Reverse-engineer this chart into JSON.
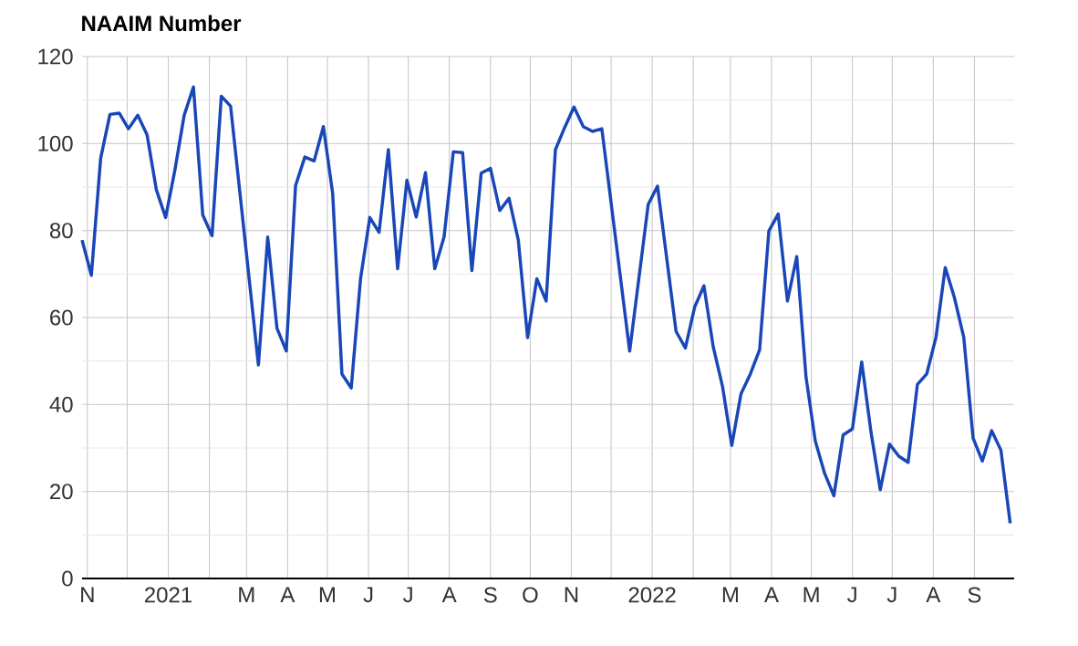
{
  "chart_data": {
    "type": "line",
    "title": "NAAIM Number",
    "x": [
      "2020-10-28",
      "2020-11-04",
      "2020-11-11",
      "2020-11-18",
      "2020-11-25",
      "2020-12-02",
      "2020-12-09",
      "2020-12-16",
      "2020-12-23",
      "2020-12-30",
      "2021-01-06",
      "2021-01-13",
      "2021-01-20",
      "2021-01-27",
      "2021-02-03",
      "2021-02-10",
      "2021-02-17",
      "2021-03-10",
      "2021-03-17",
      "2021-03-24",
      "2021-03-31",
      "2021-04-07",
      "2021-04-14",
      "2021-04-21",
      "2021-04-28",
      "2021-05-05",
      "2021-05-12",
      "2021-05-19",
      "2021-05-26",
      "2021-06-02",
      "2021-06-09",
      "2021-06-16",
      "2021-06-23",
      "2021-06-30",
      "2021-07-07",
      "2021-07-14",
      "2021-07-21",
      "2021-07-28",
      "2021-08-04",
      "2021-08-11",
      "2021-08-18",
      "2021-08-25",
      "2021-09-01",
      "2021-09-08",
      "2021-09-15",
      "2021-09-22",
      "2021-09-29",
      "2021-10-06",
      "2021-10-13",
      "2021-10-20",
      "2021-10-27",
      "2021-11-03",
      "2021-11-10",
      "2021-11-17",
      "2021-11-24",
      "2021-12-15",
      "2021-12-29",
      "2022-01-05",
      "2022-01-19",
      "2022-01-26",
      "2022-02-02",
      "2022-02-09",
      "2022-02-16",
      "2022-02-23",
      "2022-03-02",
      "2022-03-09",
      "2022-03-16",
      "2022-03-23",
      "2022-03-30",
      "2022-04-06",
      "2022-04-13",
      "2022-04-20",
      "2022-04-27",
      "2022-05-04",
      "2022-05-11",
      "2022-05-18",
      "2022-05-25",
      "2022-06-01",
      "2022-06-08",
      "2022-06-15",
      "2022-06-22",
      "2022-06-29",
      "2022-07-06",
      "2022-07-13",
      "2022-07-20",
      "2022-07-27",
      "2022-08-03",
      "2022-08-10",
      "2022-08-17",
      "2022-08-24",
      "2022-08-31",
      "2022-09-07",
      "2022-09-14",
      "2022-09-21",
      "2022-09-28"
    ],
    "series": [
      {
        "color": "#1a47b8",
        "values": [
          77.8,
          69.7,
          96.6,
          106.7,
          107,
          103.4,
          106.5,
          102,
          89.4,
          83,
          93.9,
          106.5,
          113,
          83.6,
          78.8,
          110.9,
          108.6,
          49.1,
          78.5,
          57.5,
          52.3,
          90.3,
          96.9,
          96,
          103.9,
          88.5,
          47,
          43.8,
          68.9,
          83,
          79.6,
          98.6,
          71.2,
          91.6,
          83.1,
          93.3,
          71.2,
          78.5,
          98.1,
          97.9,
          70.8,
          93.2,
          94.3,
          84.6,
          87.4,
          77.8,
          55.4,
          68.9,
          63.8,
          98.6,
          103.7,
          108.4,
          103.9,
          102.8,
          103.4,
          52.3,
          86,
          90.2,
          56.8,
          53,
          62.4,
          67.3,
          53.3,
          44.2,
          30.6,
          42.5,
          47,
          52.6,
          79.9,
          83.8,
          63.8,
          74,
          46.3,
          31.6,
          24.2,
          19,
          33,
          34.4,
          49.8,
          33.7,
          20.4,
          30.9,
          28.1,
          26.7,
          44.6,
          47,
          55.4,
          71.5,
          64.5,
          55.4,
          32.3,
          27,
          34,
          29.5,
          12.7
        ]
      }
    ],
    "xlim": [
      "2020-10-28",
      "2022-10-01"
    ],
    "xticks": [
      {
        "value": "2020-11-01",
        "label": "N"
      },
      {
        "value": "2020-12-01",
        "label": null
      },
      {
        "value": "2021-01-01",
        "label": "2021"
      },
      {
        "value": "2021-02-01",
        "label": null
      },
      {
        "value": "2021-03-01",
        "label": "M"
      },
      {
        "value": "2021-04-01",
        "label": "A"
      },
      {
        "value": "2021-05-01",
        "label": "M"
      },
      {
        "value": "2021-06-01",
        "label": "J"
      },
      {
        "value": "2021-07-01",
        "label": "J"
      },
      {
        "value": "2021-08-01",
        "label": "A"
      },
      {
        "value": "2021-09-01",
        "label": "S"
      },
      {
        "value": "2021-10-01",
        "label": "O"
      },
      {
        "value": "2021-11-01",
        "label": "N"
      },
      {
        "value": "2021-12-01",
        "label": null
      },
      {
        "value": "2022-01-01",
        "label": "2022"
      },
      {
        "value": "2022-02-01",
        "label": null
      },
      {
        "value": "2022-03-01",
        "label": "M"
      },
      {
        "value": "2022-04-01",
        "label": "A"
      },
      {
        "value": "2022-05-01",
        "label": "M"
      },
      {
        "value": "2022-06-01",
        "label": "J"
      },
      {
        "value": "2022-07-01",
        "label": "J"
      },
      {
        "value": "2022-08-01",
        "label": "A"
      },
      {
        "value": "2022-09-01",
        "label": "S"
      }
    ],
    "ylim": [
      0,
      120
    ],
    "yticks": [
      0,
      20,
      40,
      60,
      80,
      100,
      120
    ],
    "grid": true,
    "marker": "none",
    "line_style": "solid"
  }
}
